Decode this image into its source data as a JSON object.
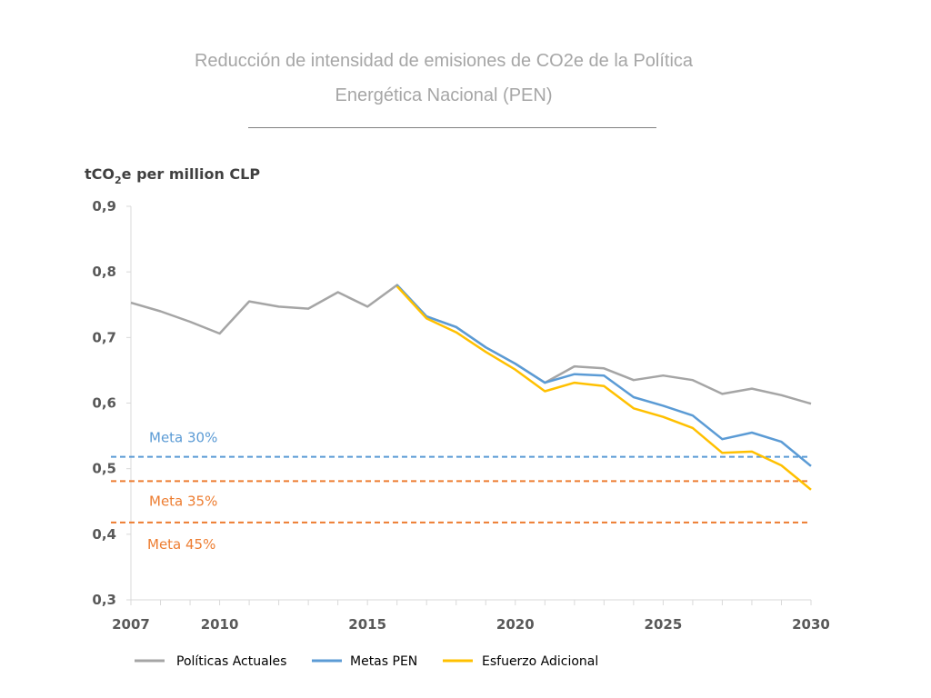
{
  "title_lines": [
    "Reducción de intensidad de emisiones de CO2e de la Política",
    "Energética Nacional (PEN)"
  ],
  "chart_data": {
    "type": "line",
    "ylabel": {
      "prefix": "tCO",
      "subscript": "2",
      "suffix": "e per million CLP"
    },
    "xlim": [
      2007,
      2030
    ],
    "ylim": [
      0.3,
      0.9
    ],
    "yticks": [
      "0,3",
      "0,4",
      "0,5",
      "0,6",
      "0,7",
      "0,8",
      "0,9"
    ],
    "ytick_values": [
      0.3,
      0.4,
      0.5,
      0.6,
      0.7,
      0.8,
      0.9
    ],
    "xticks": [
      "2007",
      "2010",
      "2015",
      "2020",
      "2025",
      "2030"
    ],
    "xtick_values": [
      2007,
      2010,
      2015,
      2020,
      2025,
      2030
    ],
    "series": [
      {
        "name": "Políticas Actuales",
        "color": "#a5a5a5",
        "x": [
          2007,
          2008,
          2009,
          2010,
          2011,
          2012,
          2013,
          2014,
          2015,
          2016,
          2017,
          2018,
          2019,
          2020,
          2021,
          2022,
          2023,
          2024,
          2025,
          2026,
          2027,
          2028,
          2029,
          2030
        ],
        "values": [
          0.753,
          0.74,
          0.724,
          0.706,
          0.755,
          0.747,
          0.744,
          0.769,
          0.747,
          0.78,
          0.732,
          0.716,
          0.685,
          0.66,
          0.631,
          0.656,
          0.653,
          0.635,
          0.642,
          0.635,
          0.614,
          0.622,
          0.612,
          0.599
        ]
      },
      {
        "name": "Metas PEN",
        "color": "#5b9bd5",
        "x": [
          2016,
          2017,
          2018,
          2019,
          2020,
          2021,
          2022,
          2023,
          2024,
          2025,
          2026,
          2027,
          2028,
          2029,
          2030
        ],
        "values": [
          0.78,
          0.732,
          0.716,
          0.685,
          0.66,
          0.631,
          0.644,
          0.642,
          0.609,
          0.596,
          0.581,
          0.545,
          0.555,
          0.541,
          0.504
        ]
      },
      {
        "name": "Esfuerzo Adicional",
        "color": "#ffc000",
        "x": [
          2016,
          2017,
          2018,
          2019,
          2020,
          2021,
          2022,
          2023,
          2024,
          2025,
          2026,
          2027,
          2028,
          2029,
          2030
        ],
        "values": [
          0.778,
          0.729,
          0.708,
          0.678,
          0.651,
          0.618,
          0.631,
          0.626,
          0.592,
          0.579,
          0.562,
          0.524,
          0.526,
          0.505,
          0.468
        ]
      }
    ],
    "reference_lines": [
      {
        "label": "Meta 30%",
        "value": 0.518,
        "color": "#5b9bd5"
      },
      {
        "label": "Meta 35%",
        "value": 0.481,
        "color": "#ed7d31"
      },
      {
        "label": "Meta 45%",
        "value": 0.418,
        "color": "#ed7d31"
      }
    ],
    "legend": [
      {
        "label": "Políticas Actuales",
        "color": "#a5a5a5"
      },
      {
        "label": "Metas PEN",
        "color": "#5b9bd5"
      },
      {
        "label": "Esfuerzo Adicional",
        "color": "#ffc000"
      }
    ],
    "legend_position": "bottom",
    "grid": false
  }
}
